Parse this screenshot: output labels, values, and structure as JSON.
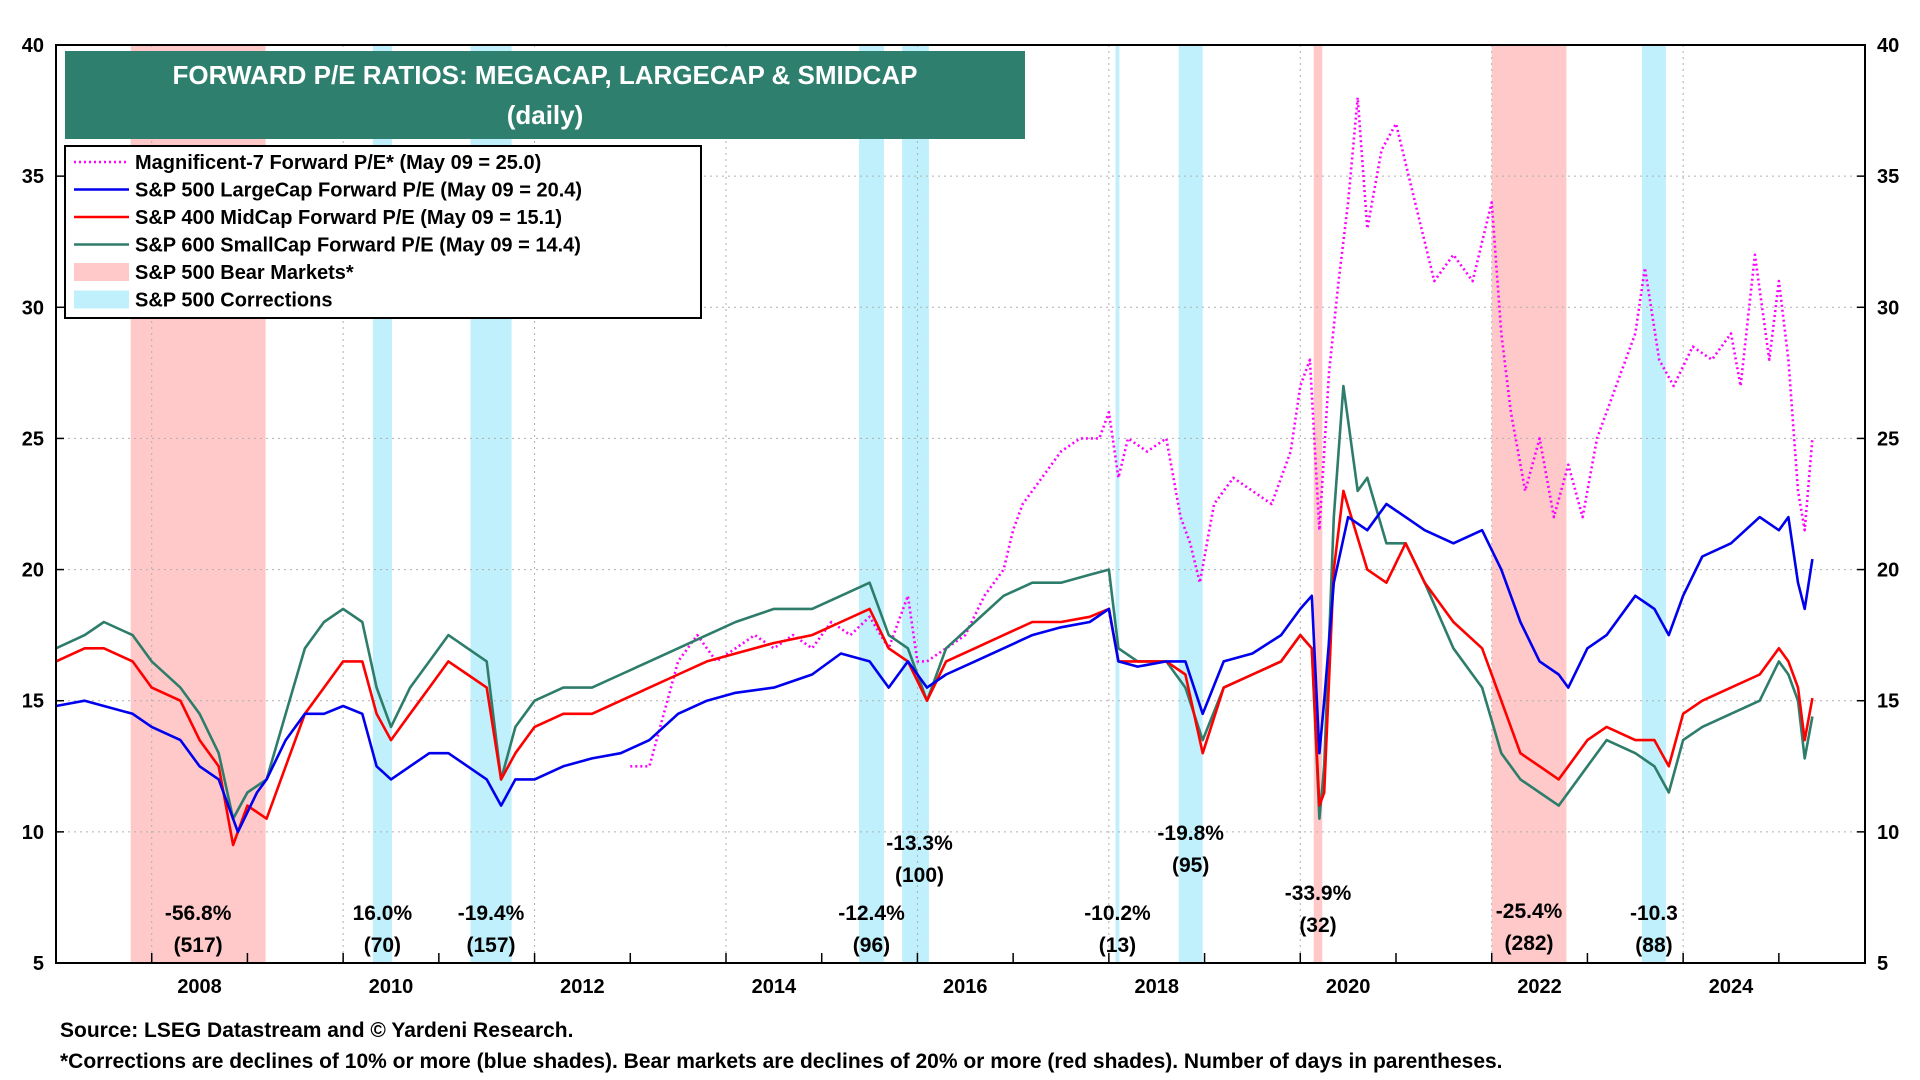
{
  "chart_data": {
    "type": "line",
    "title": "FORWARD P/E RATIOS: MEGACAP, LARGECAP & SMIDCAP",
    "subtitle": "(daily)",
    "xlim": [
      2007.0,
      2025.9
    ],
    "ylim": [
      5,
      40
    ],
    "x_ticks": [
      "2008",
      "2010",
      "2012",
      "2014",
      "2016",
      "2018",
      "2020",
      "2022",
      "2024"
    ],
    "y_ticks": [
      "5",
      "10",
      "15",
      "20",
      "25",
      "30",
      "35",
      "40"
    ],
    "grid": true,
    "legend_position": "top-left",
    "colors": {
      "mag7": "#ff00ff",
      "sp500": "#0000ee",
      "sp400": "#ff0000",
      "sp600": "#2e7d6b",
      "bear": "#ffc9c9",
      "correction": "#bff0fb",
      "title_bg": "#2e7f6e"
    },
    "legend": [
      {
        "label": "Magnificent-7 Forward P/E* (May 09 = 25.0)",
        "kind": "dotted",
        "color": "#ff00ff"
      },
      {
        "label": "S&P 500 LargeCap Forward P/E (May 09 = 20.4)",
        "kind": "line",
        "color": "#0000ee"
      },
      {
        "label": "S&P 400 MidCap Forward P/E (May 09 = 15.1)",
        "kind": "line",
        "color": "#ff0000"
      },
      {
        "label": "S&P 600 SmallCap Forward P/E (May 09 = 14.4)",
        "kind": "line",
        "color": "#2e7d6b"
      },
      {
        "label": "S&P 500 Bear Markets*",
        "kind": "box",
        "color": "#ffc9c9"
      },
      {
        "label": "S&P 500 Corrections",
        "kind": "box",
        "color": "#bff0fb"
      }
    ],
    "bear_markets": [
      {
        "start": 2007.78,
        "end": 2009.19,
        "pct": "-56.8%",
        "days": "(517)"
      },
      {
        "start": 2020.14,
        "end": 2020.23,
        "pct": "-33.9%",
        "days": "(32)"
      },
      {
        "start": 2022.0,
        "end": 2022.78,
        "pct": "-25.4%",
        "days": "(282)"
      }
    ],
    "corrections": [
      {
        "start": 2010.31,
        "end": 2010.51,
        "pct": "16.0%",
        "days": "(70)"
      },
      {
        "start": 2011.33,
        "end": 2011.76,
        "pct": "-19.4%",
        "days": "(157)"
      },
      {
        "start": 2015.39,
        "end": 2015.65,
        "pct": "-12.4%",
        "days": "(96)"
      },
      {
        "start": 2015.84,
        "end": 2016.12,
        "pct": "-13.3%",
        "days": "(100)"
      },
      {
        "start": 2018.07,
        "end": 2018.11,
        "pct": "-10.2%",
        "days": "(13)"
      },
      {
        "start": 2018.73,
        "end": 2018.98,
        "pct": "-19.8%",
        "days": "(95)"
      },
      {
        "start": 2023.57,
        "end": 2023.82,
        "pct": "-10.3",
        "days": "(88)"
      }
    ],
    "series": [
      {
        "name": "Magnificent-7 Forward P/E*",
        "style": "dotted",
        "color": "#ff00ff",
        "x": [
          2013.0,
          2013.2,
          2013.35,
          2013.5,
          2013.7,
          2013.9,
          2014.1,
          2014.3,
          2014.5,
          2014.7,
          2014.9,
          2015.1,
          2015.3,
          2015.5,
          2015.7,
          2015.9,
          2016.0,
          2016.1,
          2016.3,
          2016.5,
          2016.7,
          2016.9,
          2017.0,
          2017.1,
          2017.3,
          2017.5,
          2017.7,
          2017.9,
          2018.0,
          2018.1,
          2018.2,
          2018.4,
          2018.6,
          2018.75,
          2018.85,
          2018.95,
          2019.1,
          2019.3,
          2019.5,
          2019.7,
          2019.9,
          2020.0,
          2020.1,
          2020.2,
          2020.3,
          2020.4,
          2020.5,
          2020.6,
          2020.7,
          2020.85,
          2021.0,
          2021.2,
          2021.4,
          2021.6,
          2021.8,
          2022.0,
          2022.1,
          2022.2,
          2022.35,
          2022.5,
          2022.65,
          2022.8,
          2022.95,
          2023.1,
          2023.3,
          2023.5,
          2023.6,
          2023.75,
          2023.9,
          2024.1,
          2024.3,
          2024.5,
          2024.6,
          2024.75,
          2024.9,
          2025.0,
          2025.1,
          2025.2,
          2025.27,
          2025.35
        ],
        "y": [
          12.5,
          12.5,
          14.5,
          16.5,
          17.5,
          16.5,
          17.0,
          17.5,
          17.0,
          17.5,
          17.0,
          18.0,
          17.5,
          18.2,
          17.0,
          19.0,
          16.5,
          16.5,
          17.0,
          17.5,
          19.0,
          20.0,
          21.5,
          22.5,
          23.5,
          24.5,
          25.0,
          25.0,
          26.0,
          23.5,
          25.0,
          24.5,
          25.0,
          22.0,
          21.0,
          19.5,
          22.5,
          23.5,
          23.0,
          22.5,
          24.5,
          27.0,
          28.0,
          21.5,
          27.5,
          31.0,
          34.0,
          38.0,
          33.0,
          36.0,
          37.0,
          34.0,
          31.0,
          32.0,
          31.0,
          34.0,
          29.0,
          26.0,
          23.0,
          25.0,
          22.0,
          24.0,
          22.0,
          25.0,
          27.0,
          29.0,
          31.5,
          28.0,
          27.0,
          28.5,
          28.0,
          29.0,
          27.0,
          32.0,
          28.0,
          31.0,
          28.0,
          23.0,
          21.5,
          25.0
        ]
      },
      {
        "name": "S&P 500 LargeCap Forward P/E",
        "style": "solid",
        "color": "#0000ee",
        "x": [
          2007.0,
          2007.3,
          2007.5,
          2007.8,
          2008.0,
          2008.3,
          2008.5,
          2008.7,
          2008.9,
          2009.1,
          2009.2,
          2009.4,
          2009.6,
          2009.8,
          2010.0,
          2010.2,
          2010.35,
          2010.5,
          2010.7,
          2010.9,
          2011.1,
          2011.3,
          2011.5,
          2011.65,
          2011.8,
          2012.0,
          2012.3,
          2012.6,
          2012.9,
          2013.2,
          2013.5,
          2013.8,
          2014.1,
          2014.5,
          2014.9,
          2015.2,
          2015.5,
          2015.7,
          2015.9,
          2016.1,
          2016.3,
          2016.6,
          2016.9,
          2017.2,
          2017.5,
          2017.8,
          2018.0,
          2018.1,
          2018.3,
          2018.6,
          2018.8,
          2018.98,
          2019.2,
          2019.5,
          2019.8,
          2020.0,
          2020.12,
          2020.2,
          2020.25,
          2020.35,
          2020.5,
          2020.7,
          2020.9,
          2021.1,
          2021.3,
          2021.6,
          2021.9,
          2022.1,
          2022.3,
          2022.5,
          2022.7,
          2022.8,
          2023.0,
          2023.2,
          2023.5,
          2023.7,
          2023.85,
          2024.0,
          2024.2,
          2024.5,
          2024.8,
          2025.0,
          2025.1,
          2025.2,
          2025.27,
          2025.35
        ],
        "y": [
          14.8,
          15.0,
          14.8,
          14.5,
          14.0,
          13.5,
          12.5,
          12.0,
          10.0,
          11.5,
          12.0,
          13.5,
          14.5,
          14.5,
          14.8,
          14.5,
          12.5,
          12.0,
          12.5,
          13.0,
          13.0,
          12.5,
          12.0,
          11.0,
          12.0,
          12.0,
          12.5,
          12.8,
          13.0,
          13.5,
          14.5,
          15.0,
          15.3,
          15.5,
          16.0,
          16.8,
          16.5,
          15.5,
          16.5,
          15.5,
          16.0,
          16.5,
          17.0,
          17.5,
          17.8,
          18.0,
          18.5,
          16.5,
          16.3,
          16.5,
          16.5,
          14.5,
          16.5,
          16.8,
          17.5,
          18.5,
          19.0,
          13.0,
          15.0,
          19.5,
          22.0,
          21.5,
          22.5,
          22.0,
          21.5,
          21.0,
          21.5,
          20.0,
          18.0,
          16.5,
          16.0,
          15.5,
          17.0,
          17.5,
          19.0,
          18.5,
          17.5,
          19.0,
          20.5,
          21.0,
          22.0,
          21.5,
          22.0,
          19.5,
          18.5,
          20.4
        ]
      },
      {
        "name": "S&P 400 MidCap Forward P/E",
        "style": "solid",
        "color": "#ff0000",
        "x": [
          2007.0,
          2007.3,
          2007.5,
          2007.8,
          2008.0,
          2008.3,
          2008.5,
          2008.7,
          2008.85,
          2009.0,
          2009.2,
          2009.4,
          2009.6,
          2009.8,
          2010.0,
          2010.2,
          2010.35,
          2010.5,
          2010.7,
          2010.9,
          2011.1,
          2011.3,
          2011.5,
          2011.65,
          2011.8,
          2012.0,
          2012.3,
          2012.6,
          2012.9,
          2013.2,
          2013.5,
          2013.8,
          2014.1,
          2014.5,
          2014.9,
          2015.2,
          2015.5,
          2015.7,
          2015.9,
          2016.1,
          2016.3,
          2016.6,
          2016.9,
          2017.2,
          2017.5,
          2017.8,
          2018.0,
          2018.1,
          2018.3,
          2018.6,
          2018.8,
          2018.98,
          2019.2,
          2019.5,
          2019.8,
          2020.0,
          2020.12,
          2020.2,
          2020.25,
          2020.35,
          2020.45,
          2020.7,
          2020.9,
          2021.1,
          2021.3,
          2021.6,
          2021.9,
          2022.1,
          2022.3,
          2022.5,
          2022.7,
          2022.8,
          2023.0,
          2023.2,
          2023.5,
          2023.7,
          2023.85,
          2024.0,
          2024.2,
          2024.5,
          2024.8,
          2025.0,
          2025.1,
          2025.2,
          2025.27,
          2025.35
        ],
        "y": [
          16.5,
          17.0,
          17.0,
          16.5,
          15.5,
          15.0,
          13.5,
          12.5,
          9.5,
          11.0,
          10.5,
          12.5,
          14.5,
          15.5,
          16.5,
          16.5,
          14.5,
          13.5,
          14.5,
          15.5,
          16.5,
          16.0,
          15.5,
          12.0,
          13.0,
          14.0,
          14.5,
          14.5,
          15.0,
          15.5,
          16.0,
          16.5,
          16.8,
          17.2,
          17.5,
          18.0,
          18.5,
          17.0,
          16.5,
          15.0,
          16.5,
          17.0,
          17.5,
          18.0,
          18.0,
          18.2,
          18.5,
          16.5,
          16.5,
          16.5,
          16.0,
          13.0,
          15.5,
          16.0,
          16.5,
          17.5,
          17.0,
          11.0,
          11.5,
          20.0,
          23.0,
          20.0,
          19.5,
          21.0,
          19.5,
          18.0,
          17.0,
          15.0,
          13.0,
          12.5,
          12.0,
          12.5,
          13.5,
          14.0,
          13.5,
          13.5,
          12.5,
          14.5,
          15.0,
          15.5,
          16.0,
          17.0,
          16.5,
          15.5,
          13.5,
          15.1
        ]
      },
      {
        "name": "S&P 600 SmallCap Forward P/E",
        "style": "solid",
        "color": "#2e7d6b",
        "x": [
          2007.0,
          2007.3,
          2007.5,
          2007.8,
          2008.0,
          2008.3,
          2008.5,
          2008.7,
          2008.85,
          2009.0,
          2009.2,
          2009.4,
          2009.6,
          2009.8,
          2010.0,
          2010.2,
          2010.35,
          2010.5,
          2010.7,
          2010.9,
          2011.1,
          2011.3,
          2011.5,
          2011.65,
          2011.8,
          2012.0,
          2012.3,
          2012.6,
          2012.9,
          2013.2,
          2013.5,
          2013.8,
          2014.1,
          2014.5,
          2014.9,
          2015.2,
          2015.5,
          2015.7,
          2015.9,
          2016.1,
          2016.3,
          2016.6,
          2016.9,
          2017.2,
          2017.5,
          2017.8,
          2018.0,
          2018.1,
          2018.3,
          2018.6,
          2018.8,
          2018.98,
          2019.2,
          2019.5,
          2019.8,
          2020.0,
          2020.12,
          2020.2,
          2020.25,
          2020.35,
          2020.45,
          2020.6,
          2020.7,
          2020.9,
          2021.1,
          2021.3,
          2021.6,
          2021.9,
          2022.1,
          2022.3,
          2022.5,
          2022.7,
          2022.8,
          2023.0,
          2023.2,
          2023.5,
          2023.7,
          2023.85,
          2024.0,
          2024.2,
          2024.5,
          2024.8,
          2025.0,
          2025.1,
          2025.2,
          2025.27,
          2025.35
        ],
        "y": [
          17.0,
          17.5,
          18.0,
          17.5,
          16.5,
          15.5,
          14.5,
          13.0,
          10.5,
          11.5,
          12.0,
          14.5,
          17.0,
          18.0,
          18.5,
          18.0,
          15.5,
          14.0,
          15.5,
          16.5,
          17.5,
          17.0,
          16.5,
          12.0,
          14.0,
          15.0,
          15.5,
          15.5,
          16.0,
          16.5,
          17.0,
          17.5,
          18.0,
          18.5,
          18.5,
          19.0,
          19.5,
          17.5,
          17.0,
          15.0,
          17.0,
          18.0,
          19.0,
          19.5,
          19.5,
          19.8,
          20.0,
          17.0,
          16.5,
          16.5,
          15.5,
          13.5,
          15.5,
          16.0,
          16.5,
          17.5,
          17.0,
          10.5,
          12.5,
          22.0,
          27.0,
          23.0,
          23.5,
          21.0,
          21.0,
          19.5,
          17.0,
          15.5,
          13.0,
          12.0,
          11.5,
          11.0,
          11.5,
          12.5,
          13.5,
          13.0,
          12.5,
          11.5,
          13.5,
          14.0,
          14.5,
          15.0,
          16.5,
          16.0,
          15.0,
          12.8,
          14.4
        ]
      }
    ],
    "footnote_source": "Source: LSEG Datastream and © Yardeni Research.",
    "footnote_note": "*Corrections are declines of 10% or more (blue shades). Bear markets are declines of 20% or more (red shades). Number of days in parentheses."
  }
}
